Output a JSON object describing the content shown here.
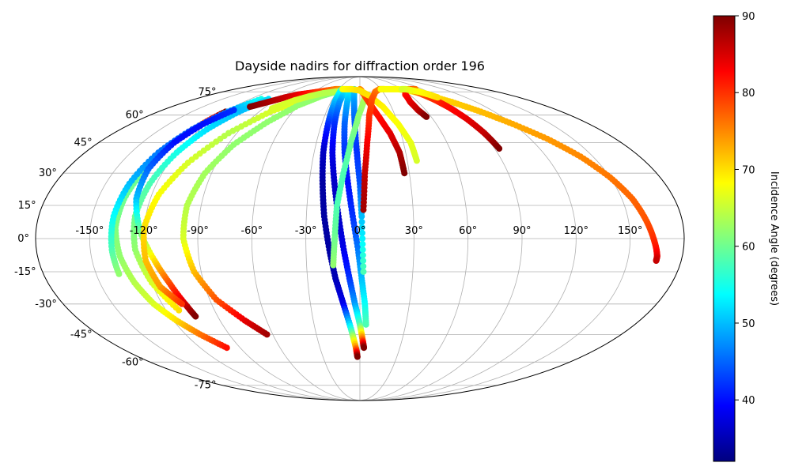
{
  "chart_data": {
    "type": "scatter",
    "title": "Dayside nadirs for diffraction order 196",
    "projection": "mollweide",
    "grid": true,
    "lon_ticks": [
      {
        "value": -150,
        "label": "-150°"
      },
      {
        "value": -120,
        "label": "-120°"
      },
      {
        "value": -90,
        "label": "-90°"
      },
      {
        "value": -60,
        "label": "-60°"
      },
      {
        "value": -30,
        "label": "-30°"
      },
      {
        "value": 0,
        "label": "0°"
      },
      {
        "value": 30,
        "label": "30°"
      },
      {
        "value": 60,
        "label": "60°"
      },
      {
        "value": 90,
        "label": "90°"
      },
      {
        "value": 120,
        "label": "120°"
      },
      {
        "value": 150,
        "label": "150°"
      }
    ],
    "lat_ticks": [
      {
        "value": 75,
        "label": "75°"
      },
      {
        "value": 60,
        "label": "60°"
      },
      {
        "value": 45,
        "label": "45°"
      },
      {
        "value": 30,
        "label": "30°"
      },
      {
        "value": 15,
        "label": "15°"
      },
      {
        "value": 0,
        "label": "0°"
      },
      {
        "value": -15,
        "label": "-15°"
      },
      {
        "value": -30,
        "label": "-30°"
      },
      {
        "value": -45,
        "label": "-45°"
      },
      {
        "value": -60,
        "label": "-60°"
      },
      {
        "value": -75,
        "label": "-75°"
      }
    ],
    "colorbar": {
      "label": "Incidence Angle (degrees)",
      "colormap": "jet",
      "range": [
        32,
        90
      ],
      "ticks": [
        {
          "value": 40,
          "label": "40"
        },
        {
          "value": 50,
          "label": "50"
        },
        {
          "value": 60,
          "label": "60"
        },
        {
          "value": 70,
          "label": "70"
        },
        {
          "value": 80,
          "label": "80"
        },
        {
          "value": 90,
          "label": "90"
        }
      ]
    },
    "tracks": [
      {
        "lon": [
          -120,
          -124,
          -128,
          -132,
          -135,
          -136,
          -134,
          -130,
          -125,
          -118,
          -110,
          -100
        ],
        "lat": [
          62,
          55,
          45,
          32,
          18,
          5,
          -8,
          -20,
          -30,
          -38,
          -45,
          -52
        ],
        "incidence": [
          90,
          78,
          66,
          60,
          60,
          61,
          62,
          64,
          66,
          70,
          76,
          82
        ]
      },
      {
        "lon": [
          -108,
          -118,
          -126,
          -132,
          -136,
          -138,
          -138,
          -137
        ],
        "lat": [
          70,
          62,
          52,
          40,
          25,
          10,
          -5,
          -16
        ],
        "incidence": [
          55,
          48,
          44,
          46,
          50,
          54,
          58,
          62
        ]
      },
      {
        "lon": [
          -100,
          -108,
          -115,
          -120,
          -124,
          -126,
          -125,
          -120,
          -112
        ],
        "lat": [
          70,
          62,
          52,
          40,
          25,
          10,
          -5,
          -20,
          -33
        ],
        "incidence": [
          52,
          50,
          52,
          55,
          58,
          60,
          62,
          66,
          70
        ]
      },
      {
        "lon": [
          -115,
          -123,
          -128,
          -130,
          -128,
          -122,
          -115,
          -110,
          -106,
          -104
        ],
        "lat": [
          63,
          55,
          45,
          32,
          18,
          3,
          -10,
          -20,
          -30,
          -36
        ],
        "incidence": [
          42,
          40,
          40,
          45,
          50,
          60,
          70,
          78,
          85,
          90
        ]
      },
      {
        "lon": [
          -40,
          -60,
          -80,
          -96,
          -108,
          -116,
          -120,
          -120,
          -116,
          -108
        ],
        "lat": [
          75,
          70,
          62,
          50,
          35,
          20,
          5,
          -10,
          -22,
          -30
        ],
        "incidence": [
          70,
          68,
          66,
          64,
          66,
          68,
          70,
          72,
          74,
          80
        ]
      },
      {
        "lon": [
          -28,
          -45,
          -60,
          -74,
          -86,
          -94,
          -98,
          -98,
          -94,
          -86,
          -74,
          -64
        ],
        "lat": [
          76,
          72,
          66,
          56,
          44,
          30,
          15,
          0,
          -15,
          -28,
          -38,
          -45
        ],
        "incidence": [
          60,
          62,
          62,
          62,
          62,
          63,
          64,
          66,
          72,
          78,
          84,
          88
        ]
      },
      {
        "lon": [
          -105,
          -95,
          -85,
          -75,
          -65,
          -55,
          -45,
          -35,
          -25
        ],
        "lat": [
          65,
          68,
          71,
          73,
          74,
          75,
          76,
          77,
          77
        ],
        "incidence": [
          90,
          88,
          86,
          84,
          82,
          80,
          78,
          76,
          74
        ]
      },
      {
        "lon": [
          -82,
          -70,
          -58,
          -46,
          -34,
          -22,
          -12
        ],
        "lat": [
          64,
          69,
          72,
          74,
          75,
          76,
          76
        ],
        "incidence": [
          66,
          66,
          65,
          64,
          64,
          65,
          66
        ]
      },
      {
        "lon": [
          -26,
          -26,
          -25,
          -24,
          -22,
          -20,
          -17,
          -14,
          -10,
          -6,
          -3,
          -2
        ],
        "lat": [
          77,
          68,
          55,
          40,
          25,
          10,
          -5,
          -18,
          -30,
          -42,
          -52,
          -57
        ],
        "incidence": [
          56,
          50,
          42,
          36,
          34,
          34,
          34,
          35,
          38,
          55,
          75,
          90
        ]
      },
      {
        "lon": [
          -20,
          -21,
          -20,
          -18,
          -15,
          -12,
          -9,
          -6,
          -3,
          0,
          2,
          3
        ],
        "lat": [
          77,
          68,
          55,
          40,
          25,
          10,
          -5,
          -18,
          -30,
          -40,
          -48,
          -52
        ],
        "incidence": [
          55,
          48,
          42,
          38,
          36,
          36,
          38,
          42,
          48,
          58,
          78,
          90
        ]
      },
      {
        "lon": [
          -14,
          -13,
          -12,
          -10,
          -7,
          -4,
          -1,
          1,
          3,
          4
        ],
        "lat": [
          77,
          68,
          55,
          40,
          25,
          10,
          -5,
          -18,
          -30,
          -40
        ],
        "incidence": [
          55,
          50,
          45,
          42,
          40,
          42,
          46,
          50,
          54,
          58
        ]
      },
      {
        "lon": [
          -8,
          -6,
          -4,
          -2,
          0,
          1,
          2
        ],
        "lat": [
          77,
          68,
          55,
          40,
          25,
          10,
          -15
        ],
        "incidence": [
          52,
          48,
          44,
          42,
          44,
          50,
          58
        ]
      },
      {
        "lon": [
          6,
          -1,
          -6,
          -10,
          -13,
          -14,
          -15
        ],
        "lat": [
          72,
          60,
          46,
          30,
          15,
          0,
          -12
        ],
        "incidence": [
          64,
          62,
          60,
          58,
          58,
          60,
          62
        ]
      },
      {
        "lon": [
          0,
          2,
          5,
          10,
          16,
          22,
          26,
          27
        ],
        "lat": [
          77,
          76,
          73,
          67,
          59,
          50,
          40,
          30
        ],
        "incidence": [
          74,
          76,
          78,
          80,
          82,
          84,
          87,
          90
        ]
      },
      {
        "lon": [
          -25,
          -12,
          0,
          12,
          22,
          30,
          35,
          36
        ],
        "lat": [
          77,
          77,
          76,
          72,
          65,
          55,
          45,
          36
        ],
        "incidence": [
          68,
          69,
          70,
          70,
          69,
          68,
          67,
          66
        ]
      },
      {
        "lon": [
          35,
          28,
          20,
          13,
          8,
          5,
          3,
          2
        ],
        "lat": [
          77,
          77,
          75,
          70,
          60,
          45,
          30,
          13
        ],
        "incidence": [
          72,
          74,
          76,
          78,
          80,
          83,
          86,
          88
        ]
      },
      {
        "lon": [
          30,
          42,
          55,
          66,
          80,
          95,
          108,
          120,
          132,
          142,
          150,
          156,
          160,
          163,
          165,
          166,
          166
        ],
        "lat": [
          77,
          77,
          77,
          76,
          73,
          68,
          62,
          55,
          47,
          38,
          28,
          18,
          8,
          0,
          -5,
          -8,
          -10
        ],
        "incidence": [
          68,
          68,
          68,
          69,
          70,
          71,
          72,
          73,
          74,
          75,
          76,
          77,
          78,
          80,
          82,
          84,
          86
        ]
      },
      {
        "lon": [
          80,
          70,
          62,
          55,
          52,
          53,
          56
        ],
        "lat": [
          77,
          77,
          76,
          73,
          68,
          63,
          59
        ],
        "incidence": [
          76,
          78,
          80,
          82,
          84,
          86,
          90
        ]
      },
      {
        "lon": [
          70,
          75,
          80,
          84,
          88,
          91,
          93
        ],
        "lat": [
          77,
          74,
          70,
          65,
          58,
          50,
          42
        ],
        "incidence": [
          76,
          78,
          80,
          82,
          84,
          86,
          90
        ]
      },
      {
        "lon": [
          60,
          66,
          72,
          78,
          84,
          88
        ],
        "lat": [
          77,
          77,
          76,
          75,
          73,
          71
        ],
        "incidence": [
          66,
          66,
          67,
          68,
          69,
          70
        ]
      }
    ]
  }
}
